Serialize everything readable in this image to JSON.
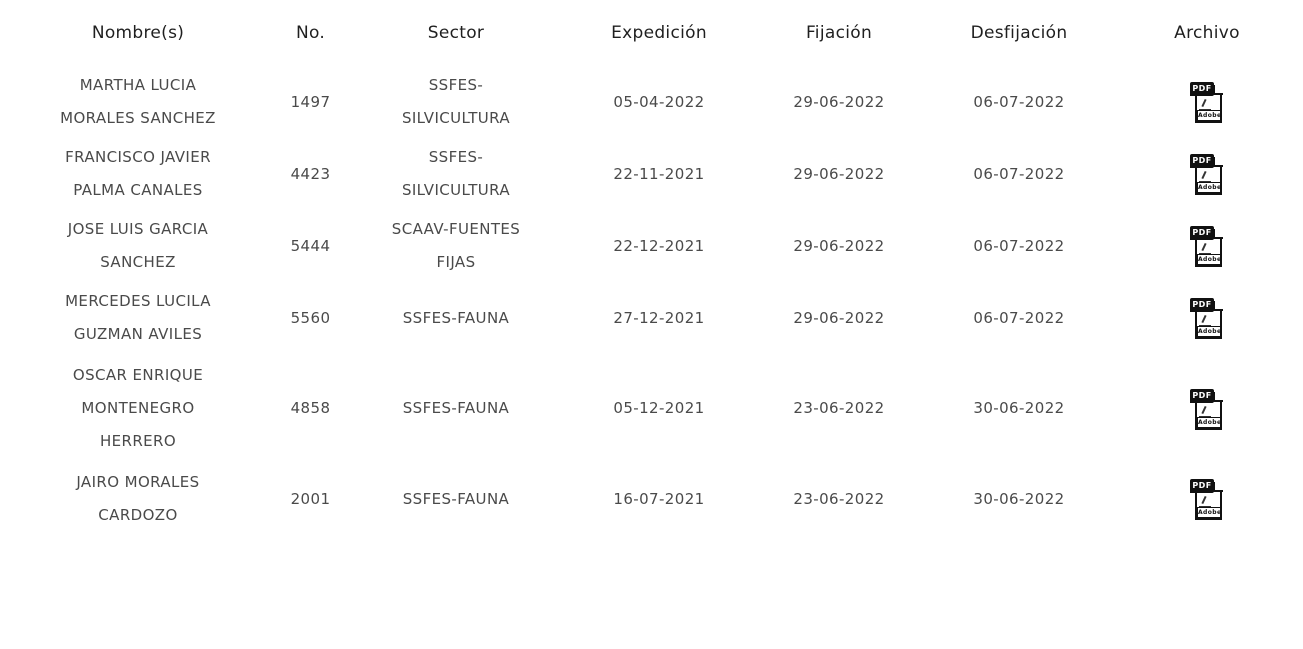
{
  "headers": [
    "Nombre(s)",
    "No.",
    "Sector",
    "Expedición",
    "Fijación",
    "Desfijación",
    "Archivo"
  ],
  "rows": [
    {
      "nombre": [
        "MARTHA LUCIA",
        "MORALES SANCHEZ"
      ],
      "no": "1497",
      "sector": [
        "SSFES-",
        "SILVICULTURA"
      ],
      "expedicion": "05-04-2022",
      "fijacion": "29-06-2022",
      "desfijacion": "06-07-2022",
      "archivo": {
        "icon": "pdf-icon",
        "badge": "PDF",
        "brand": "Adobe"
      }
    },
    {
      "nombre": [
        "FRANCISCO JAVIER",
        "PALMA CANALES"
      ],
      "no": "4423",
      "sector": [
        "SSFES-",
        "SILVICULTURA"
      ],
      "expedicion": "22-11-2021",
      "fijacion": "29-06-2022",
      "desfijacion": "06-07-2022",
      "archivo": {
        "icon": "pdf-icon",
        "badge": "PDF",
        "brand": "Adobe"
      }
    },
    {
      "nombre": [
        "JOSE LUIS GARCIA",
        "SANCHEZ"
      ],
      "no": "5444",
      "sector": [
        "SCAAV-FUENTES",
        "FIJAS"
      ],
      "expedicion": "22-12-2021",
      "fijacion": "29-06-2022",
      "desfijacion": "06-07-2022",
      "archivo": {
        "icon": "pdf-icon",
        "badge": "PDF",
        "brand": "Adobe"
      }
    },
    {
      "nombre": [
        "MERCEDES LUCILA",
        "GUZMAN AVILES"
      ],
      "no": "5560",
      "sector": [
        "SSFES-FAUNA"
      ],
      "expedicion": "27-12-2021",
      "fijacion": "29-06-2022",
      "desfijacion": "06-07-2022",
      "archivo": {
        "icon": "pdf-icon",
        "badge": "PDF",
        "brand": "Adobe"
      }
    },
    {
      "nombre": [
        "OSCAR ENRIQUE",
        "MONTENEGRO",
        "HERRERO"
      ],
      "no": "4858",
      "sector": [
        "SSFES-FAUNA"
      ],
      "expedicion": "05-12-2021",
      "fijacion": "23-06-2022",
      "desfijacion": "30-06-2022",
      "archivo": {
        "icon": "pdf-icon",
        "badge": "PDF",
        "brand": "Adobe"
      }
    },
    {
      "nombre": [
        "JAIRO MORALES",
        "CARDOZO"
      ],
      "no": "2001",
      "sector": [
        "SSFES-FAUNA"
      ],
      "expedicion": "16-07-2021",
      "fijacion": "23-06-2022",
      "desfijacion": "30-06-2022",
      "archivo": {
        "icon": "pdf-icon",
        "badge": "PDF",
        "brand": "Adobe"
      }
    }
  ]
}
